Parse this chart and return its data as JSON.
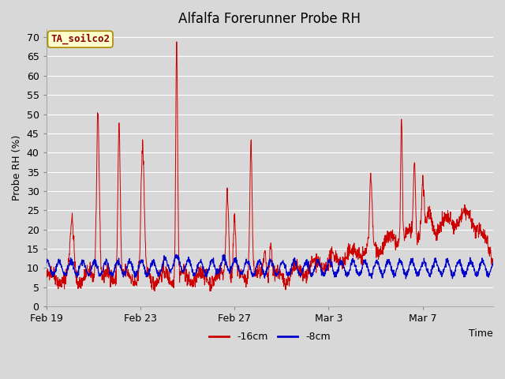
{
  "title": "Alfalfa Forerunner Probe RH",
  "xlabel": "Time",
  "ylabel": "Probe RH (%)",
  "ylim": [
    0,
    72
  ],
  "yticks": [
    0,
    5,
    10,
    15,
    20,
    25,
    30,
    35,
    40,
    45,
    50,
    55,
    60,
    65,
    70
  ],
  "xtick_days": [
    0,
    4,
    8,
    12,
    16
  ],
  "xtick_labels": [
    "Feb 19",
    "Feb 23",
    "Feb 27",
    "Mar 3",
    "Mar 7"
  ],
  "legend_label": "TA_soilco2",
  "line1_label": "-16cm",
  "line2_label": "-8cm",
  "line1_color": "#cc0000",
  "line2_color": "#0000cc",
  "bg_color": "#d8d8d8",
  "plot_bg_color": "#d8d8d8",
  "grid_color": "#ffffff",
  "annotation_bg": "#ffffcc",
  "annotation_border": "#aa8800",
  "annotation_text_color": "#880000",
  "title_fontsize": 12,
  "axis_fontsize": 9,
  "tick_fontsize": 9,
  "total_days": 19,
  "n_points": 1824
}
